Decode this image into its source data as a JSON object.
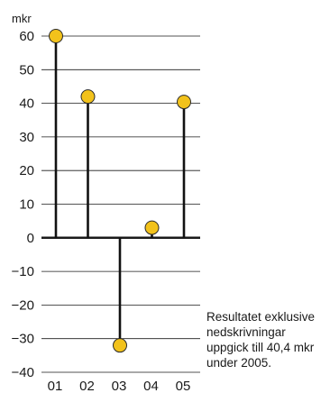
{
  "chart_data": {
    "type": "lollipop",
    "unit_label": "mkr",
    "categories": [
      "01",
      "02",
      "03",
      "04",
      "05"
    ],
    "values": [
      60,
      42,
      -32,
      3,
      40.4
    ],
    "ylim": [
      -40,
      60
    ],
    "yticks": [
      60,
      50,
      40,
      30,
      20,
      10,
      0,
      -10,
      -20,
      -30,
      -40
    ],
    "ytick_labels": [
      "60",
      "50",
      "40",
      "30",
      "20",
      "10",
      "0",
      "−10",
      "−20",
      "−30",
      "−40"
    ],
    "grid": true,
    "colors": {
      "marker": "#f2c21b",
      "stem": "#111111",
      "grid": "#1a1a1a"
    }
  },
  "note_lines": [
    "Resultatet exklusive",
    "nedskrivningar",
    "uppgick till 40,4 mkr",
    "under 2005."
  ]
}
